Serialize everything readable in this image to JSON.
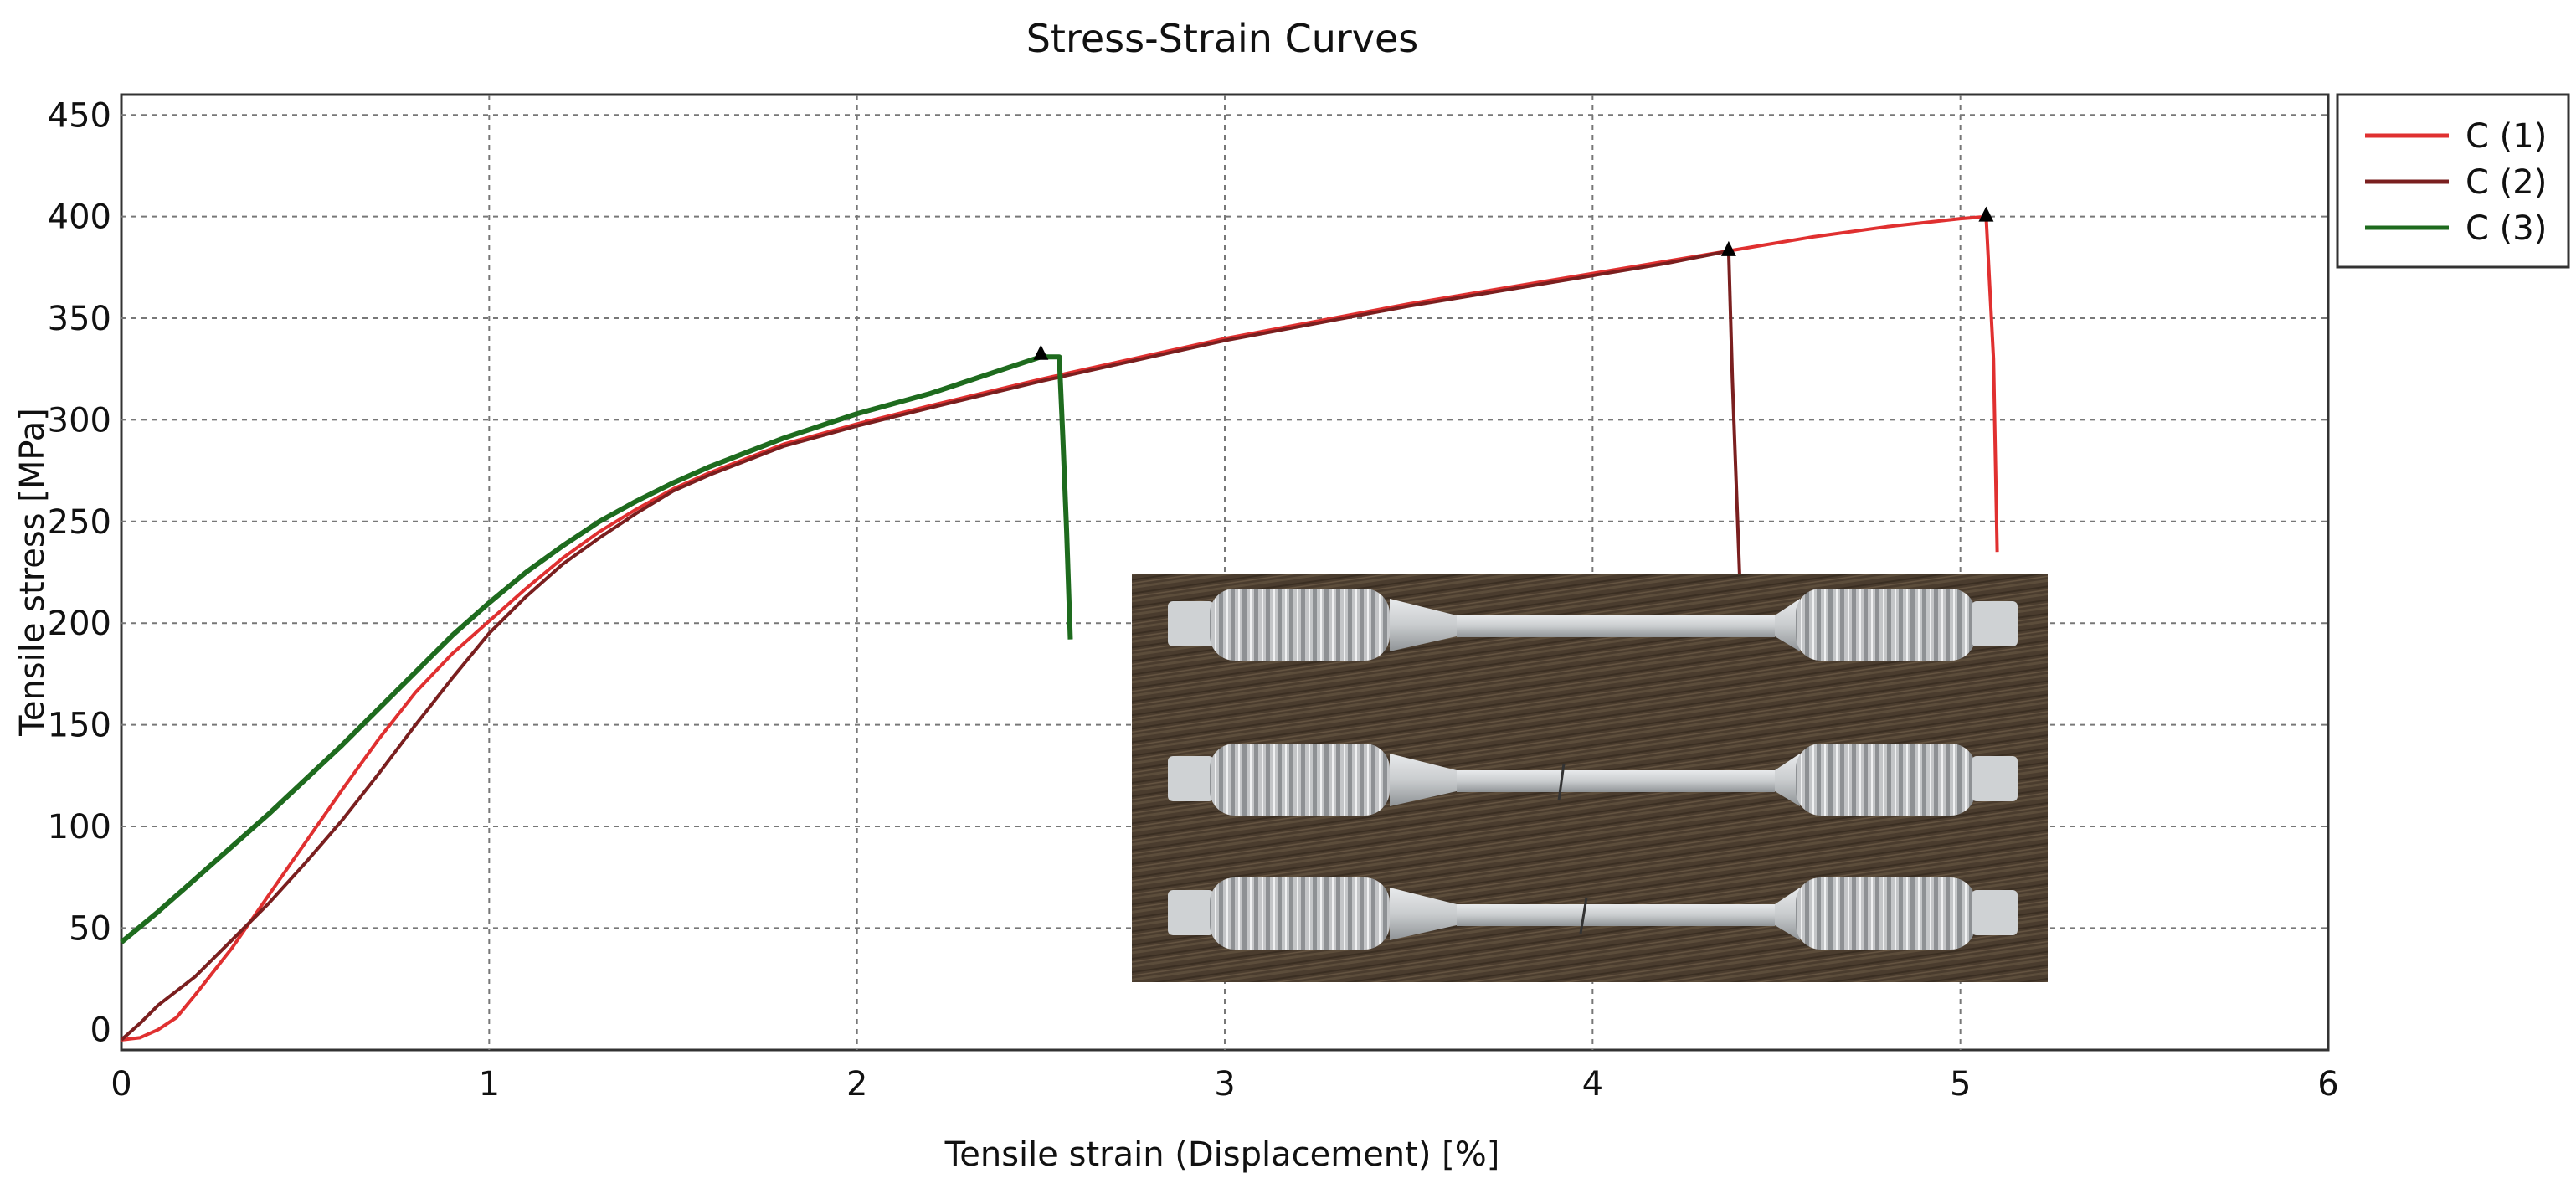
{
  "chart_data": {
    "type": "line",
    "title": "Stress-Strain Curves",
    "xlabel": "Tensile strain (Displacement) [%]",
    "ylabel": "Tensile stress [MPa]",
    "xlim": [
      0,
      6
    ],
    "ylim": [
      -10,
      460
    ],
    "x_ticks": [
      "0",
      "1",
      "2",
      "3",
      "4",
      "5",
      "6"
    ],
    "y_ticks": [
      "0",
      "50",
      "100",
      "150",
      "200",
      "250",
      "300",
      "350",
      "400",
      "450"
    ],
    "grid": true,
    "legend_position": "top-right (outside plot)",
    "series": [
      {
        "name": "C (1)",
        "color": "#e03030",
        "points": [
          [
            0.0,
            -5
          ],
          [
            0.05,
            -4
          ],
          [
            0.1,
            0
          ],
          [
            0.15,
            6
          ],
          [
            0.2,
            17
          ],
          [
            0.3,
            40
          ],
          [
            0.4,
            66
          ],
          [
            0.5,
            92
          ],
          [
            0.6,
            118
          ],
          [
            0.7,
            143
          ],
          [
            0.8,
            166
          ],
          [
            0.9,
            185
          ],
          [
            1.0,
            201
          ],
          [
            1.1,
            217
          ],
          [
            1.2,
            232
          ],
          [
            1.3,
            245
          ],
          [
            1.4,
            256
          ],
          [
            1.5,
            266
          ],
          [
            1.6,
            274
          ],
          [
            1.8,
            288
          ],
          [
            2.0,
            298
          ],
          [
            2.2,
            307
          ],
          [
            2.5,
            320
          ],
          [
            2.8,
            332
          ],
          [
            3.0,
            340
          ],
          [
            3.5,
            357
          ],
          [
            4.0,
            372
          ],
          [
            4.4,
            384
          ],
          [
            4.6,
            390
          ],
          [
            4.8,
            395
          ],
          [
            5.0,
            399
          ],
          [
            5.07,
            400
          ],
          [
            5.09,
            330
          ],
          [
            5.1,
            235
          ]
        ],
        "break_marker": [
          5.07,
          400
        ]
      },
      {
        "name": "C (2)",
        "color": "#7a1f1f",
        "points": [
          [
            0.0,
            -5
          ],
          [
            0.05,
            3
          ],
          [
            0.1,
            12
          ],
          [
            0.2,
            26
          ],
          [
            0.3,
            44
          ],
          [
            0.4,
            62
          ],
          [
            0.5,
            82
          ],
          [
            0.6,
            103
          ],
          [
            0.7,
            126
          ],
          [
            0.8,
            150
          ],
          [
            0.9,
            173
          ],
          [
            1.0,
            195
          ],
          [
            1.1,
            213
          ],
          [
            1.2,
            229
          ],
          [
            1.3,
            242
          ],
          [
            1.4,
            254
          ],
          [
            1.5,
            265
          ],
          [
            1.6,
            273
          ],
          [
            1.8,
            287
          ],
          [
            2.0,
            297
          ],
          [
            2.2,
            306
          ],
          [
            2.5,
            319
          ],
          [
            2.8,
            331
          ],
          [
            3.0,
            339
          ],
          [
            3.5,
            356
          ],
          [
            4.0,
            371
          ],
          [
            4.2,
            377
          ],
          [
            4.37,
            383
          ],
          [
            4.38,
            320
          ],
          [
            4.4,
            222
          ]
        ],
        "break_marker": [
          4.37,
          383
        ]
      },
      {
        "name": "C (3)",
        "color": "#1e6b1e",
        "points": [
          [
            0.0,
            43
          ],
          [
            0.1,
            58
          ],
          [
            0.2,
            74
          ],
          [
            0.3,
            90
          ],
          [
            0.4,
            106
          ],
          [
            0.5,
            123
          ],
          [
            0.6,
            140
          ],
          [
            0.7,
            158
          ],
          [
            0.8,
            176
          ],
          [
            0.9,
            194
          ],
          [
            1.0,
            210
          ],
          [
            1.1,
            225
          ],
          [
            1.2,
            238
          ],
          [
            1.3,
            250
          ],
          [
            1.4,
            260
          ],
          [
            1.5,
            269
          ],
          [
            1.6,
            277
          ],
          [
            1.8,
            291
          ],
          [
            2.0,
            303
          ],
          [
            2.2,
            313
          ],
          [
            2.4,
            325
          ],
          [
            2.5,
            331
          ],
          [
            2.55,
            331
          ],
          [
            2.56,
            290
          ],
          [
            2.57,
            245
          ],
          [
            2.58,
            192
          ]
        ],
        "break_marker": [
          2.5,
          332
        ]
      }
    ]
  }
}
